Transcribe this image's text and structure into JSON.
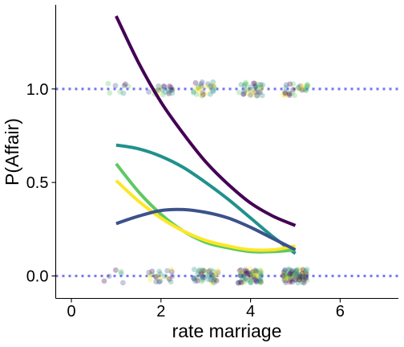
{
  "chart_data": {
    "type": "scatter",
    "xlabel": "rate marriage",
    "ylabel": "P(Affair)",
    "xlim": [
      -0.35,
      7.3
    ],
    "ylim": [
      -0.12,
      1.45
    ],
    "x_ticks": [
      "0",
      "2",
      "4",
      "6"
    ],
    "y_ticks": [
      "0.0",
      "0.5",
      "1.0"
    ],
    "reference_lines": [
      {
        "y": 0.0,
        "color": "#7b7bf0",
        "style": "dotted"
      },
      {
        "y": 1.0,
        "color": "#7b7bf0",
        "style": "dotted"
      }
    ],
    "jitter_points": {
      "description_free": true,
      "groups": [
        {
          "x": 1,
          "y": 1,
          "count": 8
        },
        {
          "x": 2,
          "y": 1,
          "count": 22
        },
        {
          "x": 3,
          "y": 1,
          "count": 30
        },
        {
          "x": 4,
          "y": 1,
          "count": 34
        },
        {
          "x": 5,
          "y": 1,
          "count": 30
        },
        {
          "x": 1,
          "y": 0,
          "count": 6
        },
        {
          "x": 2,
          "y": 0,
          "count": 22
        },
        {
          "x": 3,
          "y": 0,
          "count": 45
        },
        {
          "x": 4,
          "y": 0,
          "count": 70
        },
        {
          "x": 5,
          "y": 0,
          "count": 90
        }
      ],
      "colors": [
        "#440154",
        "#3b528b",
        "#21918c",
        "#5ec962",
        "#fde725"
      ],
      "opacity": 0.3
    },
    "series": [
      {
        "color": "#440154",
        "x": [
          1,
          1.5,
          2,
          2.5,
          3,
          3.5,
          4,
          4.5,
          5
        ],
        "y": [
          1.39,
          1.14,
          0.93,
          0.76,
          0.61,
          0.49,
          0.39,
          0.32,
          0.27
        ]
      },
      {
        "color": "#21918c",
        "x": [
          1,
          1.5,
          2,
          2.5,
          3,
          3.5,
          4,
          4.5,
          5
        ],
        "y": [
          0.7,
          0.68,
          0.64,
          0.58,
          0.5,
          0.41,
          0.31,
          0.21,
          0.12
        ]
      },
      {
        "color": "#5ec962",
        "x": [
          1,
          1.5,
          2,
          2.5,
          3,
          3.5,
          4,
          4.5,
          5
        ],
        "y": [
          0.6,
          0.45,
          0.33,
          0.24,
          0.18,
          0.15,
          0.13,
          0.13,
          0.14
        ]
      },
      {
        "color": "#fde725",
        "x": [
          1,
          1.5,
          2,
          2.5,
          3,
          3.5,
          4,
          4.5,
          5
        ],
        "y": [
          0.51,
          0.4,
          0.31,
          0.24,
          0.19,
          0.16,
          0.14,
          0.14,
          0.16
        ]
      },
      {
        "color": "#3b528b",
        "x": [
          1,
          1.5,
          2,
          2.5,
          3,
          3.5,
          4,
          4.5,
          5
        ],
        "y": [
          0.28,
          0.32,
          0.35,
          0.355,
          0.34,
          0.31,
          0.26,
          0.2,
          0.14
        ]
      }
    ]
  }
}
